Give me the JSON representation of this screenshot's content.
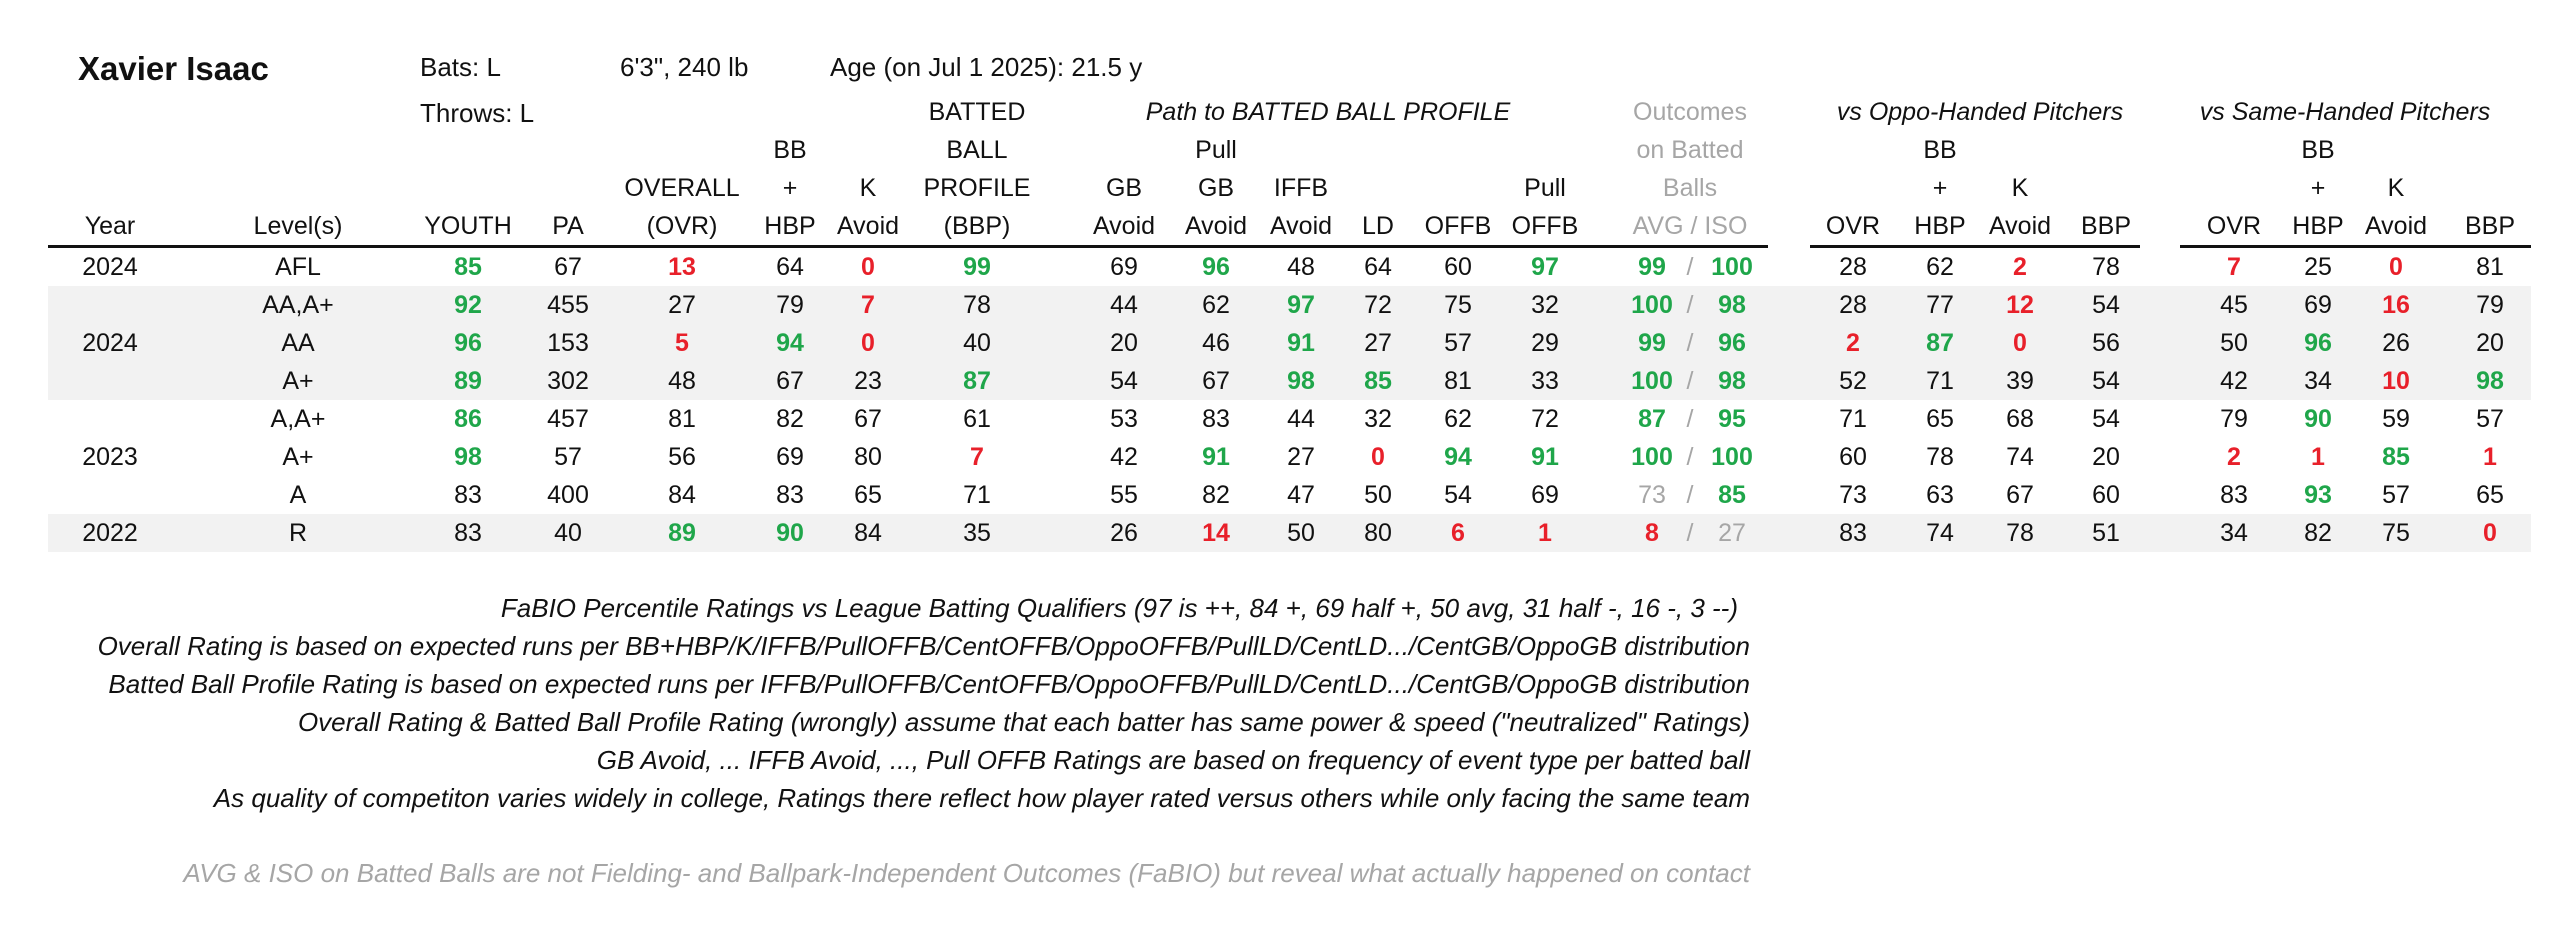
{
  "player": {
    "name": "Xavier Isaac",
    "bats": "Bats: L",
    "throws": "Throws: L",
    "size": "6'3\", 240 lb",
    "age": "Age (on Jul 1 2025): 21.5 y"
  },
  "group_headers": {
    "path": "Path to BATTED BALL PROFILE",
    "outcomes": [
      "Outcomes",
      "on Batted",
      "Balls"
    ],
    "oppo": "vs Oppo-Handed Pitchers",
    "same": "vs Same-Handed Pitchers"
  },
  "columns": [
    {
      "key": "year",
      "lines": [
        "Year"
      ]
    },
    {
      "key": "level",
      "lines": [
        "Level(s)"
      ]
    },
    {
      "key": "youth",
      "lines": [
        "YOUTH"
      ]
    },
    {
      "key": "pa",
      "lines": [
        "PA"
      ]
    },
    {
      "key": "ovr",
      "lines": [
        "OVERALL",
        "(OVR)"
      ]
    },
    {
      "key": "bb",
      "lines": [
        "BB",
        "+",
        "HBP"
      ]
    },
    {
      "key": "k",
      "lines": [
        "K",
        "Avoid"
      ]
    },
    {
      "key": "bbp",
      "lines": [
        "BATTED",
        "BALL",
        "PROFILE",
        "(BBP)"
      ]
    },
    {
      "key": "gb",
      "lines": [
        "GB",
        "Avoid"
      ]
    },
    {
      "key": "pgb",
      "lines": [
        "Pull",
        "GB",
        "Avoid"
      ]
    },
    {
      "key": "iffb",
      "lines": [
        "IFFB",
        "Avoid"
      ]
    },
    {
      "key": "ld",
      "lines": [
        "LD"
      ]
    },
    {
      "key": "offb",
      "lines": [
        "OFFB"
      ]
    },
    {
      "key": "poffb",
      "lines": [
        "Pull",
        "OFFB"
      ]
    },
    {
      "key": "avgiso",
      "lines": [
        "AVG  /  ISO"
      ]
    },
    {
      "key": "o_ovr",
      "lines": [
        "OVR"
      ]
    },
    {
      "key": "o_bb",
      "lines": [
        "BB",
        "+",
        "HBP"
      ]
    },
    {
      "key": "o_k",
      "lines": [
        "K",
        "Avoid"
      ]
    },
    {
      "key": "o_bbp",
      "lines": [
        "BBP"
      ]
    },
    {
      "key": "s_ovr",
      "lines": [
        "OVR"
      ]
    },
    {
      "key": "s_bb",
      "lines": [
        "BB",
        "+",
        "HBP"
      ]
    },
    {
      "key": "s_k",
      "lines": [
        "K",
        "Avoid"
      ]
    },
    {
      "key": "s_bbp",
      "lines": [
        "BBP"
      ]
    }
  ],
  "rows": [
    {
      "year": "2024",
      "level": "AFL",
      "shade": false,
      "v": [
        [
          "85",
          "g"
        ],
        [
          "67",
          ""
        ],
        [
          "13",
          "r"
        ],
        [
          "64",
          ""
        ],
        [
          "0",
          "r"
        ],
        [
          "99",
          "g"
        ],
        [
          "69",
          ""
        ],
        [
          "96",
          "g"
        ],
        [
          "48",
          ""
        ],
        [
          "64",
          ""
        ],
        [
          "60",
          ""
        ],
        [
          "97",
          "g"
        ]
      ],
      "avg": [
        "99",
        "g"
      ],
      "iso": [
        "100",
        "g"
      ],
      "o": [
        [
          "28",
          ""
        ],
        [
          "62",
          ""
        ],
        [
          "2",
          "r"
        ],
        [
          "78",
          ""
        ]
      ],
      "s": [
        [
          "7",
          "r"
        ],
        [
          "25",
          ""
        ],
        [
          "0",
          "r"
        ],
        [
          "81",
          ""
        ]
      ]
    },
    {
      "year": "",
      "level": "AA,A+",
      "shade": true,
      "v": [
        [
          "92",
          "g"
        ],
        [
          "455",
          ""
        ],
        [
          "27",
          ""
        ],
        [
          "79",
          ""
        ],
        [
          "7",
          "r"
        ],
        [
          "78",
          ""
        ],
        [
          "44",
          ""
        ],
        [
          "62",
          ""
        ],
        [
          "97",
          "g"
        ],
        [
          "72",
          ""
        ],
        [
          "75",
          ""
        ],
        [
          "32",
          ""
        ]
      ],
      "avg": [
        "100",
        "g"
      ],
      "iso": [
        "98",
        "g"
      ],
      "o": [
        [
          "28",
          ""
        ],
        [
          "77",
          ""
        ],
        [
          "12",
          "r"
        ],
        [
          "54",
          ""
        ]
      ],
      "s": [
        [
          "45",
          ""
        ],
        [
          "69",
          ""
        ],
        [
          "16",
          "r"
        ],
        [
          "79",
          ""
        ]
      ]
    },
    {
      "year": "2024",
      "level": "AA",
      "shade": true,
      "v": [
        [
          "96",
          "g"
        ],
        [
          "153",
          ""
        ],
        [
          "5",
          "r"
        ],
        [
          "94",
          "g"
        ],
        [
          "0",
          "r"
        ],
        [
          "40",
          ""
        ],
        [
          "20",
          ""
        ],
        [
          "46",
          ""
        ],
        [
          "91",
          "g"
        ],
        [
          "27",
          ""
        ],
        [
          "57",
          ""
        ],
        [
          "29",
          ""
        ]
      ],
      "avg": [
        "99",
        "g"
      ],
      "iso": [
        "96",
        "g"
      ],
      "o": [
        [
          "2",
          "r"
        ],
        [
          "87",
          "g"
        ],
        [
          "0",
          "r"
        ],
        [
          "56",
          ""
        ]
      ],
      "s": [
        [
          "50",
          ""
        ],
        [
          "96",
          "g"
        ],
        [
          "26",
          ""
        ],
        [
          "20",
          ""
        ]
      ]
    },
    {
      "year": "",
      "level": "A+",
      "shade": true,
      "v": [
        [
          "89",
          "g"
        ],
        [
          "302",
          ""
        ],
        [
          "48",
          ""
        ],
        [
          "67",
          ""
        ],
        [
          "23",
          ""
        ],
        [
          "87",
          "g"
        ],
        [
          "54",
          ""
        ],
        [
          "67",
          ""
        ],
        [
          "98",
          "g"
        ],
        [
          "85",
          "g"
        ],
        [
          "81",
          ""
        ],
        [
          "33",
          ""
        ]
      ],
      "avg": [
        "100",
        "g"
      ],
      "iso": [
        "98",
        "g"
      ],
      "o": [
        [
          "52",
          ""
        ],
        [
          "71",
          ""
        ],
        [
          "39",
          ""
        ],
        [
          "54",
          ""
        ]
      ],
      "s": [
        [
          "42",
          ""
        ],
        [
          "34",
          ""
        ],
        [
          "10",
          "r"
        ],
        [
          "98",
          "g"
        ]
      ]
    },
    {
      "year": "",
      "level": "A,A+",
      "shade": false,
      "v": [
        [
          "86",
          "g"
        ],
        [
          "457",
          ""
        ],
        [
          "81",
          ""
        ],
        [
          "82",
          ""
        ],
        [
          "67",
          ""
        ],
        [
          "61",
          ""
        ],
        [
          "53",
          ""
        ],
        [
          "83",
          ""
        ],
        [
          "44",
          ""
        ],
        [
          "32",
          ""
        ],
        [
          "62",
          ""
        ],
        [
          "72",
          ""
        ]
      ],
      "avg": [
        "87",
        "g"
      ],
      "iso": [
        "95",
        "g"
      ],
      "o": [
        [
          "71",
          ""
        ],
        [
          "65",
          ""
        ],
        [
          "68",
          ""
        ],
        [
          "54",
          ""
        ]
      ],
      "s": [
        [
          "79",
          ""
        ],
        [
          "90",
          "g"
        ],
        [
          "59",
          ""
        ],
        [
          "57",
          ""
        ]
      ]
    },
    {
      "year": "2023",
      "level": "A+",
      "shade": false,
      "v": [
        [
          "98",
          "g"
        ],
        [
          "57",
          ""
        ],
        [
          "56",
          ""
        ],
        [
          "69",
          ""
        ],
        [
          "80",
          ""
        ],
        [
          "7",
          "r"
        ],
        [
          "42",
          ""
        ],
        [
          "91",
          "g"
        ],
        [
          "27",
          ""
        ],
        [
          "0",
          "r"
        ],
        [
          "94",
          "g"
        ],
        [
          "91",
          "g"
        ]
      ],
      "avg": [
        "100",
        "g"
      ],
      "iso": [
        "100",
        "g"
      ],
      "o": [
        [
          "60",
          ""
        ],
        [
          "78",
          ""
        ],
        [
          "74",
          ""
        ],
        [
          "20",
          ""
        ]
      ],
      "s": [
        [
          "2",
          "r"
        ],
        [
          "1",
          "r"
        ],
        [
          "85",
          "g"
        ],
        [
          "1",
          "r"
        ]
      ]
    },
    {
      "year": "",
      "level": "A",
      "shade": false,
      "v": [
        [
          "83",
          ""
        ],
        [
          "400",
          ""
        ],
        [
          "84",
          ""
        ],
        [
          "83",
          ""
        ],
        [
          "65",
          ""
        ],
        [
          "71",
          ""
        ],
        [
          "55",
          ""
        ],
        [
          "82",
          ""
        ],
        [
          "47",
          ""
        ],
        [
          "50",
          ""
        ],
        [
          "54",
          ""
        ],
        [
          "69",
          ""
        ]
      ],
      "avg": [
        "73",
        "lt"
      ],
      "iso": [
        "85",
        "g"
      ],
      "o": [
        [
          "73",
          ""
        ],
        [
          "63",
          ""
        ],
        [
          "67",
          ""
        ],
        [
          "60",
          ""
        ]
      ],
      "s": [
        [
          "83",
          ""
        ],
        [
          "93",
          "g"
        ],
        [
          "57",
          ""
        ],
        [
          "65",
          ""
        ]
      ]
    },
    {
      "year": "2022",
      "level": "R",
      "shade": true,
      "v": [
        [
          "83",
          ""
        ],
        [
          "40",
          ""
        ],
        [
          "89",
          "g"
        ],
        [
          "90",
          "g"
        ],
        [
          "84",
          ""
        ],
        [
          "35",
          ""
        ],
        [
          "26",
          ""
        ],
        [
          "14",
          "r"
        ],
        [
          "50",
          ""
        ],
        [
          "80",
          ""
        ],
        [
          "6",
          "r"
        ],
        [
          "1",
          "r"
        ]
      ],
      "avg": [
        "8",
        "r"
      ],
      "iso": [
        "27",
        "lt"
      ],
      "o": [
        [
          "83",
          ""
        ],
        [
          "74",
          ""
        ],
        [
          "78",
          ""
        ],
        [
          "51",
          ""
        ]
      ],
      "s": [
        [
          "34",
          ""
        ],
        [
          "82",
          ""
        ],
        [
          "75",
          ""
        ],
        [
          "0",
          "r"
        ]
      ]
    }
  ],
  "notes": [
    "FaBIO Percentile Ratings vs League Batting Qualifiers (97 is ++, 84 +, 69 half +, 50 avg, 31 half -, 16 -, 3 --)",
    "Overall Rating is based on expected runs per BB+HBP/K/IFFB/PullOFFB/CentOFFB/OppoOFFB/PullLD/CentLD.../CentGB/OppoGB distribution",
    "Batted Ball Profile Rating is based on expected runs per IFFB/PullOFFB/CentOFFB/OppoOFFB/PullLD/CentLD.../CentGB/OppoGB distribution",
    "Overall Rating & Batted Ball Profile Rating (wrongly) assume that each batter has same power & speed (\"neutralized\" Ratings)",
    "GB Avoid, ... IFFB Avoid, ..., Pull OFFB Ratings are based on frequency of event type per batted ball",
    "As quality of competiton varies widely in college, Ratings there reflect how player rated versus others while only facing the same team"
  ],
  "footnote": "AVG & ISO on Batted Balls are not Fielding- and Ballpark-Independent Outcomes (FaBIO) but reveal what actually happened on contact",
  "colors": {
    "good": "#1fa64a",
    "bad": "#e8202a",
    "muted": "#a6a6a6",
    "shade": "#f2f2f2"
  }
}
